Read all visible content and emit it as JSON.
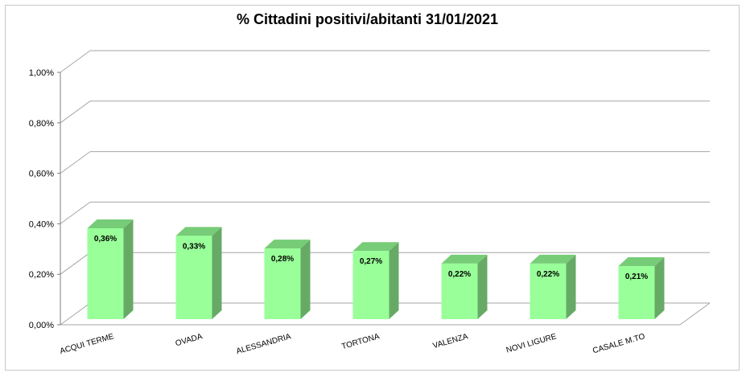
{
  "chart_data": {
    "type": "bar",
    "title": "% Cittadini positivi/abitanti 31/01/2021",
    "categories": [
      "ACQUI TERME",
      "OVADA",
      "ALESSANDRIA",
      "TORTONA",
      "VALENZA",
      "NOVI LIGURE",
      "CASALE M.TO"
    ],
    "values": [
      0.36,
      0.33,
      0.28,
      0.27,
      0.22,
      0.22,
      0.21
    ],
    "data_labels": [
      "0,36%",
      "0,33%",
      "0,28%",
      "0,27%",
      "0,22%",
      "0,22%",
      "0,21%"
    ],
    "ylim": [
      0,
      1.0
    ],
    "y_ticks": [
      "0,00%",
      "0,20%",
      "0,40%",
      "0,60%",
      "0,80%",
      "1,00%"
    ],
    "grid": true,
    "legend": "none",
    "colors": {
      "bar_front": "#99ff99",
      "bar_side": "#66aa66",
      "bar_top": "#77cc77",
      "grid": "#a6a6a6"
    }
  }
}
